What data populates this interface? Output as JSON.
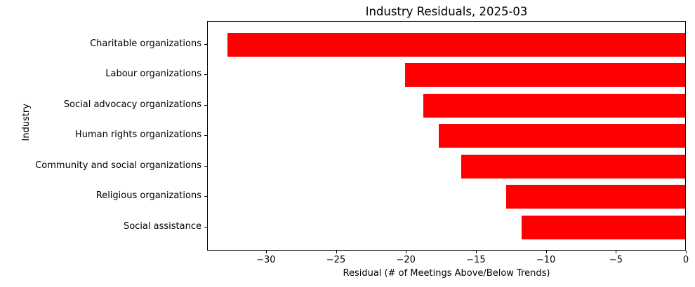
{
  "title": "Industry Residuals, 2025-03",
  "chart_data": {
    "type": "bar",
    "orientation": "horizontal",
    "title": "Industry Residuals, 2025-03",
    "categories": [
      "Charitable organizations",
      "Labour organizations",
      "Social advocacy organizations",
      "Human rights organizations",
      "Community and social organizations",
      "Religious organizations",
      "Social assistance"
    ],
    "values": [
      -32.7,
      -20.0,
      -18.7,
      -17.6,
      -16.0,
      -12.8,
      -11.7
    ],
    "xlabel": "Residual (# of Meetings Above/Below Trends)",
    "ylabel": "Industry",
    "xlim": [
      -34.2,
      0
    ],
    "x_ticks": [
      -30,
      -25,
      -20,
      -15,
      -10,
      -5,
      0
    ],
    "x_tick_labels": [
      "−30",
      "−25",
      "−20",
      "−15",
      "−10",
      "−5",
      "0"
    ],
    "bar_color": "#ff0000",
    "axis_color": "#000000",
    "background_color": "#ffffff",
    "grid": false,
    "legend": null
  }
}
